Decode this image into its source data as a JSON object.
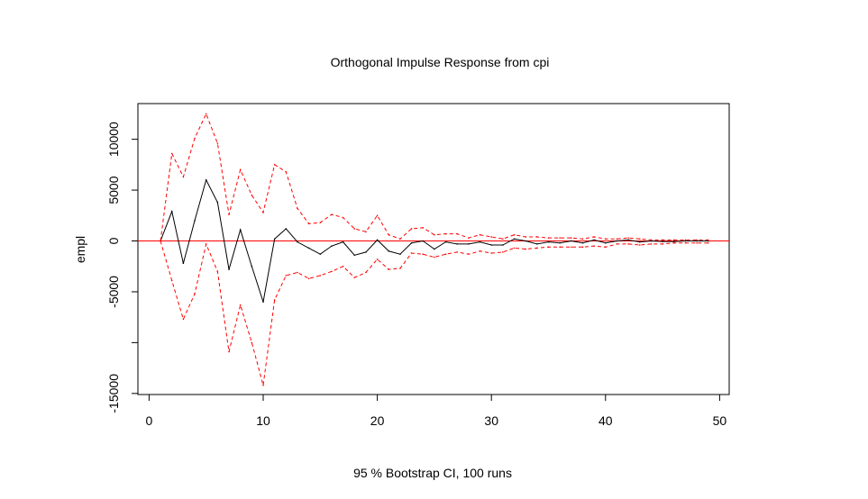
{
  "chart_data": {
    "type": "line",
    "title": "Orthogonal Impulse Response from cpi",
    "xlabel": "95 % Bootstrap CI,  100 runs",
    "ylabel": "empl",
    "xlim": [
      0,
      50
    ],
    "ylim": [
      -15000,
      13500
    ],
    "xticks": [
      0,
      10,
      20,
      30,
      40,
      50
    ],
    "yticks": [
      -15000,
      -10000,
      -5000,
      0,
      5000,
      10000
    ],
    "ytick_labels": [
      "-15000",
      "",
      "-5000",
      "0",
      "5000",
      "10000"
    ],
    "x": [
      1,
      2,
      3,
      4,
      5,
      6,
      7,
      8,
      9,
      10,
      11,
      12,
      13,
      14,
      15,
      16,
      17,
      18,
      19,
      20,
      21,
      22,
      23,
      24,
      25,
      26,
      27,
      28,
      29,
      30,
      31,
      32,
      33,
      34,
      35,
      36,
      37,
      38,
      39,
      40,
      41,
      42,
      43,
      44,
      45,
      46,
      47,
      48,
      49
    ],
    "reference_line": {
      "y": 0,
      "color": "#ff0000"
    },
    "series": [
      {
        "role": "response",
        "color": "#000000",
        "dash": "solid",
        "values": [
          0,
          2900,
          -2200,
          2000,
          6000,
          3800,
          -2800,
          1100,
          -2500,
          -6000,
          200,
          1200,
          -100,
          -700,
          -1300,
          -500,
          -100,
          -1400,
          -1100,
          100,
          -1000,
          -1300,
          -200,
          0,
          -800,
          -100,
          -300,
          -300,
          -100,
          -400,
          -400,
          200,
          0,
          -300,
          -100,
          -200,
          0,
          -200,
          100,
          -200,
          0,
          100,
          -100,
          0,
          -50,
          -50,
          0,
          0,
          0
        ]
      },
      {
        "role": "upper-ci",
        "color": "#ff0000",
        "dash": "dashed",
        "values": [
          0,
          8600,
          6300,
          10100,
          12500,
          9600,
          2600,
          7000,
          4500,
          2800,
          7500,
          6800,
          3200,
          1700,
          1800,
          2600,
          2300,
          1200,
          900,
          2500,
          600,
          200,
          1200,
          1300,
          600,
          700,
          700,
          300,
          600,
          400,
          200,
          600,
          400,
          400,
          300,
          300,
          300,
          200,
          400,
          200,
          200,
          300,
          200,
          100,
          100,
          100,
          100,
          100,
          100
        ]
      },
      {
        "role": "lower-ci",
        "color": "#ff0000",
        "dash": "dashed",
        "values": [
          0,
          -3900,
          -7700,
          -5200,
          -300,
          -3000,
          -10900,
          -6300,
          -10000,
          -14200,
          -5800,
          -3400,
          -3100,
          -3700,
          -3400,
          -3000,
          -2500,
          -3600,
          -3100,
          -1800,
          -2800,
          -2700,
          -1200,
          -1300,
          -1600,
          -1300,
          -1100,
          -1300,
          -1000,
          -1200,
          -1100,
          -700,
          -800,
          -700,
          -600,
          -600,
          -600,
          -600,
          -500,
          -600,
          -300,
          -300,
          -400,
          -300,
          -300,
          -200,
          -200,
          -200,
          -200
        ]
      }
    ],
    "grid": false,
    "legend": "none"
  }
}
